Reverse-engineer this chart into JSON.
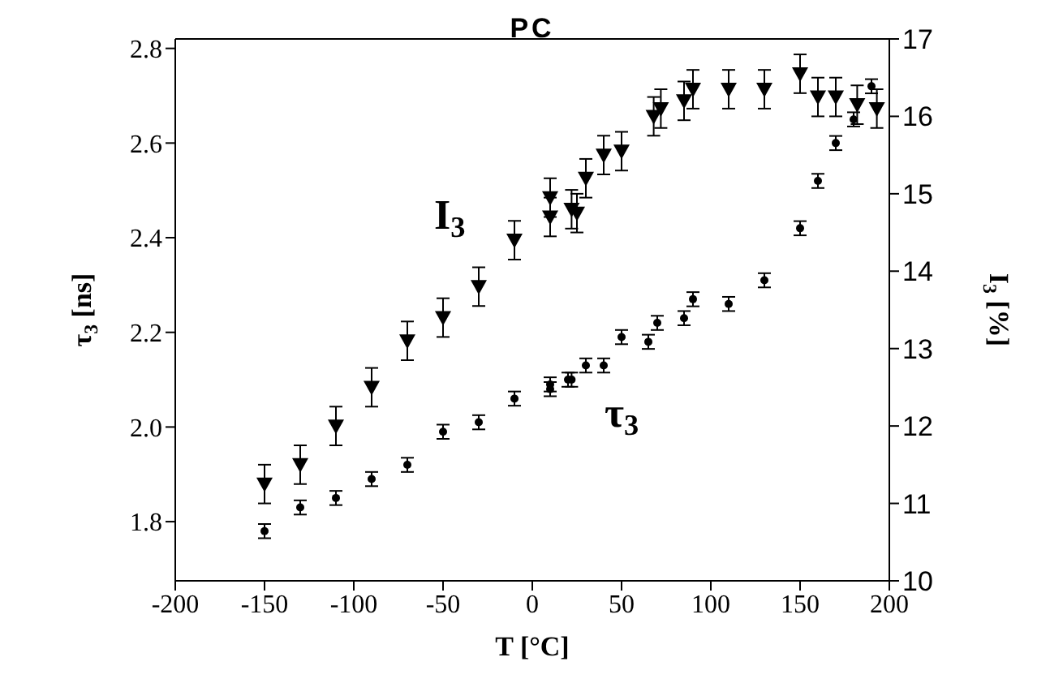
{
  "chart_data": {
    "type": "scatter",
    "title": "PC",
    "xlabel": "T [°C]",
    "ylabel": "τ$_{3}$ [ns]",
    "y2label": "I$_{3}$ [%]",
    "xlim": [
      -200,
      200
    ],
    "xticks": [
      -200,
      -150,
      -100,
      -50,
      0,
      50,
      100,
      150,
      200
    ],
    "ylim": [
      1.675,
      2.82
    ],
    "yticks": [
      1.8,
      {
        "value": 2,
        "label": "2.0"
      },
      2.2,
      2.4,
      2.6,
      2.8
    ],
    "y2lim": [
      10,
      17
    ],
    "y2ticks": [
      10,
      11,
      12,
      13,
      14,
      15,
      16,
      17
    ],
    "series": [
      {
        "name": "τ$_{3}$",
        "color": "#000000",
        "marker": "circle",
        "x": [
          -150,
          -130,
          -110,
          -90,
          -70,
          -50,
          -30,
          -10,
          10,
          10,
          20,
          22,
          30,
          40,
          50,
          65,
          70,
          85,
          90,
          110,
          130,
          150,
          160,
          170,
          180,
          190
        ],
        "values": [
          1.78,
          1.83,
          1.85,
          1.89,
          1.92,
          1.99,
          2.01,
          2.06,
          2.08,
          2.09,
          2.1,
          2.1,
          2.13,
          2.13,
          2.19,
          2.18,
          2.22,
          2.23,
          2.27,
          2.26,
          2.31,
          2.42,
          2.52,
          2.6,
          2.65,
          2.72
        ],
        "errors": [
          0.015,
          0.015,
          0.015,
          0.015,
          0.015,
          0.015,
          0.015,
          0.015,
          0.015,
          0.015,
          0.015,
          0.015,
          0.015,
          0.015,
          0.015,
          0.015,
          0.015,
          0.015,
          0.015,
          0.015,
          0.015,
          0.015,
          0.015,
          0.015,
          0.015,
          0.015
        ]
      },
      {
        "name": "I$_{3}$",
        "color": "#000000",
        "marker": "triangle",
        "axis": "y2",
        "x": [
          -150,
          -130,
          -110,
          -90,
          -70,
          -50,
          -30,
          -10,
          10,
          10,
          22,
          25,
          30,
          40,
          50,
          68,
          72,
          85,
          90,
          110,
          130,
          150,
          160,
          170,
          182,
          193
        ],
        "values": [
          11.25,
          11.5,
          12.0,
          12.5,
          13.1,
          13.4,
          13.8,
          14.4,
          14.95,
          14.7,
          14.8,
          14.75,
          15.2,
          15.5,
          15.55,
          16.0,
          16.1,
          16.2,
          16.35,
          16.35,
          16.35,
          16.55,
          16.25,
          16.25,
          16.15,
          16.1
        ],
        "errors": [
          0.25,
          0.25,
          0.25,
          0.25,
          0.25,
          0.25,
          0.25,
          0.25,
          0.25,
          0.25,
          0.25,
          0.25,
          0.25,
          0.25,
          0.25,
          0.25,
          0.25,
          0.25,
          0.25,
          0.25,
          0.25,
          0.25,
          0.25,
          0.25,
          0.25,
          0.25
        ]
      }
    ]
  }
}
